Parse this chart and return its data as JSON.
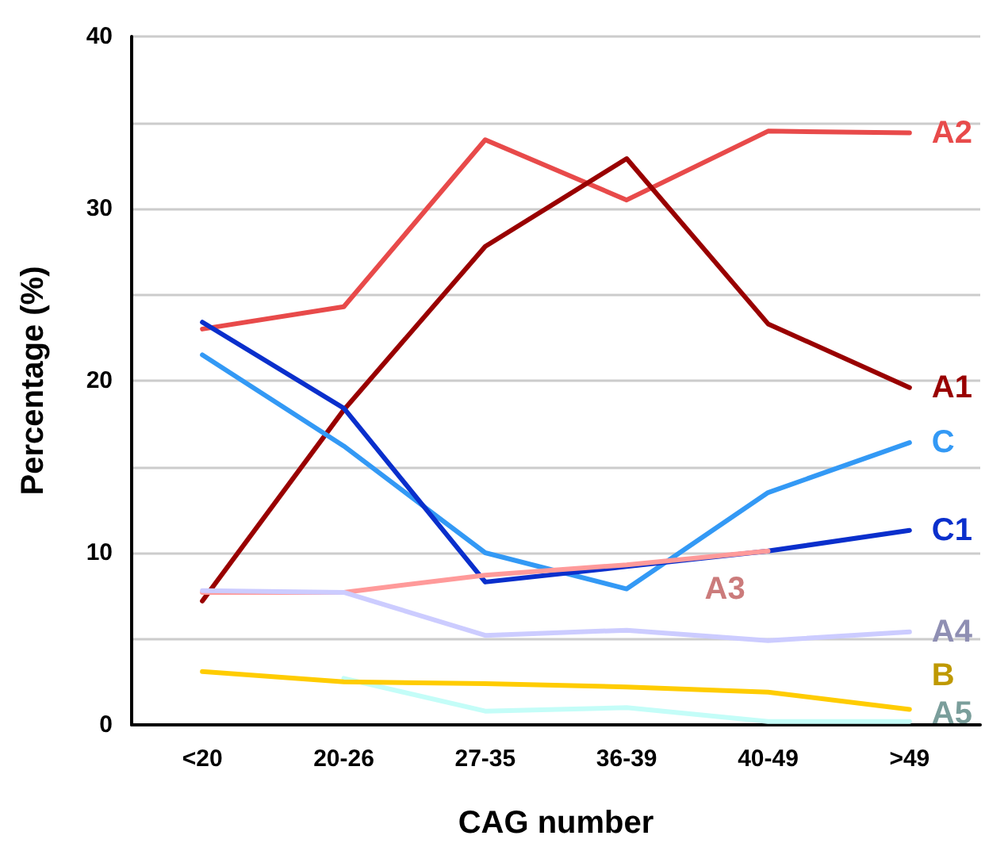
{
  "chart_data": {
    "type": "line",
    "xlabel": "CAG number",
    "ylabel": "Percentage (%)",
    "categories": [
      "<20",
      "20-26",
      "27-35",
      "36-39",
      "40-49",
      ">49"
    ],
    "ylim": [
      0,
      40
    ],
    "yticks": [
      0,
      {
        "value": 5,
        "label": null
      },
      10,
      {
        "value": 15,
        "label": null
      },
      20,
      {
        "value": 25,
        "label": null
      },
      30,
      {
        "value": 35,
        "label": null
      },
      40
    ],
    "grid": "y",
    "legend": false,
    "marker": "none",
    "line_style": "solid",
    "series": [
      {
        "name": "A2",
        "color": "#e84a4a",
        "values": [
          23.0,
          24.3,
          34.0,
          30.5,
          34.5,
          34.4
        ]
      },
      {
        "name": "A1",
        "color": "#990000",
        "values": [
          7.2,
          18.3,
          27.8,
          32.9,
          23.3,
          19.6
        ]
      },
      {
        "name": "C",
        "color": "#3399f5",
        "values": [
          21.5,
          16.2,
          10.0,
          7.9,
          13.5,
          16.4
        ]
      },
      {
        "name": "C1",
        "color": "#0a2fcc",
        "values": [
          23.4,
          18.4,
          8.3,
          9.2,
          10.1,
          11.3
        ]
      },
      {
        "name": "A3",
        "color": "#ff9a9a",
        "values": [
          7.7,
          7.7,
          8.7,
          9.3,
          10.1,
          null
        ]
      },
      {
        "name": "A4",
        "color": "#ccccff",
        "values": [
          7.8,
          7.7,
          5.2,
          5.5,
          4.9,
          5.4
        ]
      },
      {
        "name": "A5",
        "color": "#c4fdf8",
        "values": [
          null,
          2.7,
          0.8,
          1.0,
          0.2,
          0.2
        ]
      },
      {
        "name": "B",
        "color": "#ffcc00",
        "values": [
          3.1,
          2.5,
          2.4,
          2.2,
          1.9,
          0.9
        ]
      }
    ]
  }
}
